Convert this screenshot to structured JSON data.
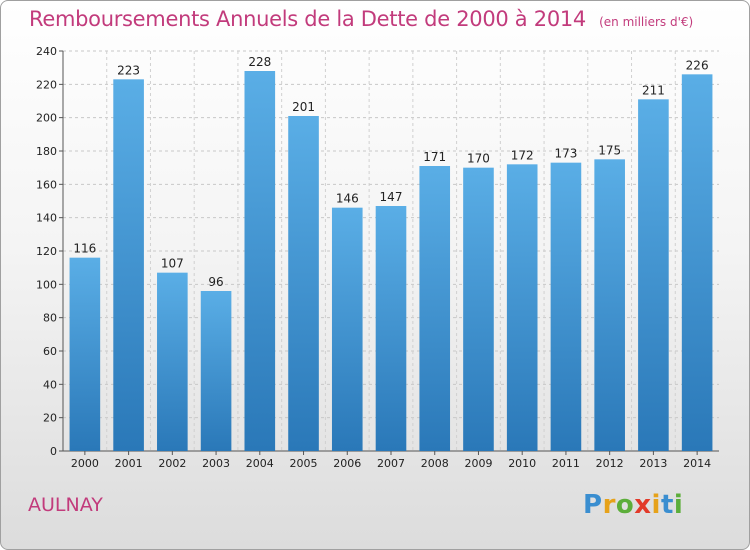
{
  "header": {
    "title": "Remboursements Annuels de la Dette de 2000 à 2014",
    "subtitle": "(en milliers d'€)"
  },
  "footer": {
    "commune": "AULNAY",
    "logo_text": "Proxiti"
  },
  "colors": {
    "bar_top": "#5aaee6",
    "bar_bottom": "#2a78b8",
    "title": "#c23b7c"
  },
  "chart_data": {
    "type": "bar",
    "title": "Remboursements Annuels de la Dette de 2000 à 2014",
    "subtitle": "(en milliers d'€)",
    "xlabel": "",
    "ylabel": "",
    "categories": [
      "2000",
      "2001",
      "2002",
      "2003",
      "2004",
      "2005",
      "2006",
      "2007",
      "2008",
      "2009",
      "2010",
      "2011",
      "2012",
      "2013",
      "2014"
    ],
    "values": [
      116,
      223,
      107,
      96,
      228,
      201,
      146,
      147,
      171,
      170,
      172,
      173,
      175,
      211,
      226
    ],
    "ylim": [
      0,
      240
    ],
    "yticks": [
      0,
      20,
      40,
      60,
      80,
      100,
      120,
      140,
      160,
      180,
      200,
      220,
      240
    ],
    "grid": true,
    "data_labels": true
  }
}
